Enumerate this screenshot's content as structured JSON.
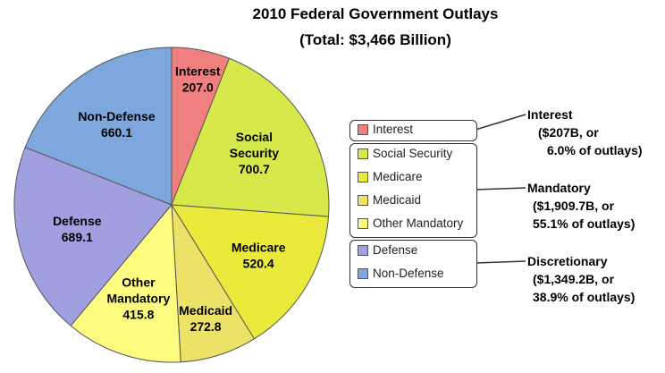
{
  "chart_data": {
    "type": "pie",
    "title": "2010 Federal Government Outlays",
    "subtitle": "(Total:  $3,466 Billion)",
    "slices": [
      {
        "label": "Interest",
        "value": 207.0,
        "value_text": "207.0",
        "color": "#f08080",
        "label_lines": [
          "Interest"
        ]
      },
      {
        "label": "Social Security",
        "value": 700.7,
        "value_text": "700.7",
        "color": "#d7e84a",
        "label_lines": [
          "Social",
          "Security"
        ]
      },
      {
        "label": "Medicare",
        "value": 520.4,
        "value_text": "520.4",
        "color": "#eaea3c",
        "label_lines": [
          "Medicare"
        ]
      },
      {
        "label": "Medicaid",
        "value": 272.8,
        "value_text": "272.8",
        "color": "#ece267",
        "label_lines": [
          "Medicaid"
        ]
      },
      {
        "label": "Other Mandatory",
        "value": 415.8,
        "value_text": "415.8",
        "color": "#fdfc80",
        "label_lines": [
          "Other",
          "Mandatory"
        ]
      },
      {
        "label": "Defense",
        "value": 689.1,
        "value_text": "689.1",
        "color": "#a0a0e0",
        "label_lines": [
          "Defense"
        ]
      },
      {
        "label": "Non-Defense",
        "value": 660.1,
        "value_text": "660.1",
        "color": "#7ea7dd",
        "label_lines": [
          "Non-Defense"
        ]
      }
    ],
    "legend_groups": [
      {
        "items": [
          "Interest"
        ],
        "group_lines": [
          "Interest",
          "($207B, or",
          "6.0% of outlays)"
        ]
      },
      {
        "items": [
          "Social Security",
          "Medicare",
          "Medicaid",
          "Other Mandatory"
        ],
        "group_lines": [
          "Mandatory",
          "($1,909.7B, or",
          "55.1% of outlays)"
        ]
      },
      {
        "items": [
          "Defense",
          "Non-Defense"
        ],
        "group_lines": [
          "Discretionary",
          "($1,349.2B, or",
          "38.9% of outlays)"
        ]
      }
    ],
    "legend_placement": "right"
  }
}
